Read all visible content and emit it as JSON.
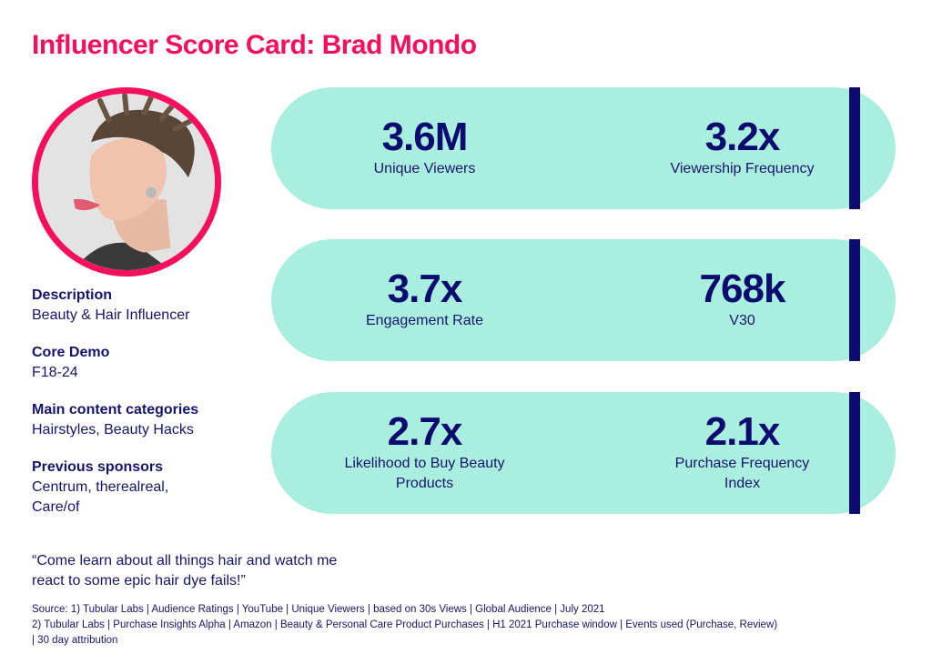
{
  "title": "Influencer Score Card: Brad Mondo",
  "profile": {
    "description_label": "Description",
    "description": "Beauty & Hair Influencer",
    "core_demo_label": "Core Demo",
    "core_demo": "F18-24",
    "categories_label": "Main content categories",
    "categories": "Hairstyles, Beauty Hacks",
    "sponsors_label": "Previous sponsors",
    "sponsors": "Centrum, therealreal, Care/of"
  },
  "stats": [
    {
      "left": {
        "value": "3.6M",
        "label": "Unique Viewers"
      },
      "right": {
        "value": "3.2x",
        "label": "Viewership Frequency"
      }
    },
    {
      "left": {
        "value": "3.7x",
        "label": "Engagement Rate"
      },
      "right": {
        "value": "768k",
        "label": "V30"
      }
    },
    {
      "left": {
        "value": "2.7x",
        "label": "Likelihood to Buy Beauty Products"
      },
      "right": {
        "value": "2.1x",
        "label": "Purchase Frequency Index"
      }
    }
  ],
  "quote": "“Come learn about all things hair and watch me react to some epic hair dye fails!”",
  "source_line1": "Source: 1) Tubular Labs | Audience Ratings | YouTube | Unique Viewers | based on 30s Views | Global Audience | July 2021",
  "source_line2": "2) Tubular Labs | Purchase Insights Alpha | Amazon | Beauty & Personal Care Product Purchases | H1 2021 Purchase window | Events used (Purchase, Review) | 30 day attribution",
  "colors": {
    "accent": "#f5105f",
    "pill": "#aaeee0",
    "navy": "#0c0c6e"
  }
}
